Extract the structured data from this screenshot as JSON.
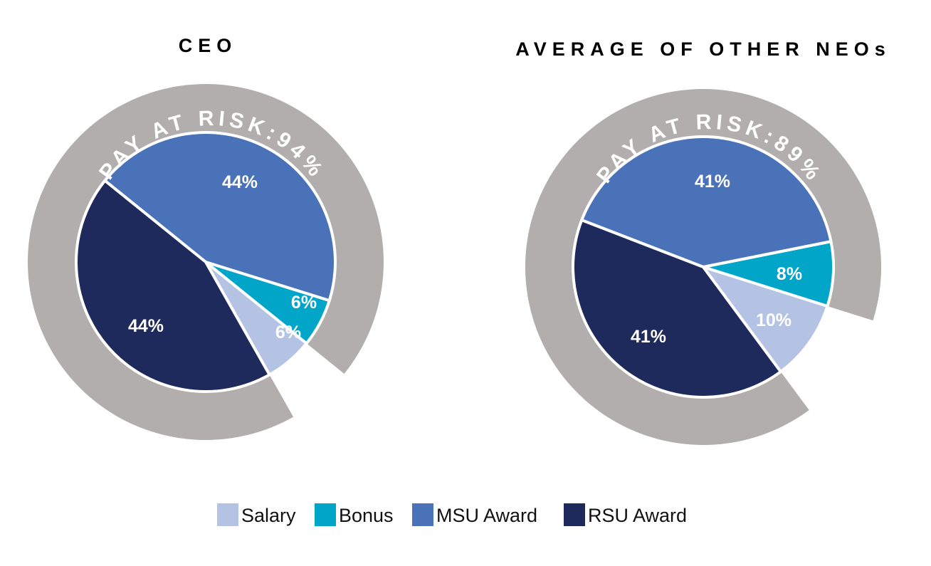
{
  "chart_data": [
    {
      "type": "pie",
      "title": "CEO",
      "pay_at_risk_label": "PAY AT RISK:94%",
      "categories": [
        "Salary",
        "Bonus",
        "MSU Award",
        "RSU Award"
      ],
      "values": [
        6,
        6,
        44,
        44
      ],
      "value_labels": [
        "6%",
        "6%",
        "44%",
        "44%"
      ]
    },
    {
      "type": "pie",
      "title": "AVERAGE OF OTHER NEOs",
      "pay_at_risk_label": "PAY AT RISK:89%",
      "categories": [
        "Salary",
        "Bonus",
        "MSU Award",
        "RSU Award"
      ],
      "values": [
        10,
        8,
        41,
        41
      ],
      "value_labels": [
        "10%",
        "8%",
        "41%",
        "41%"
      ]
    }
  ],
  "legend": [
    {
      "label": "Salary",
      "color": "#b4c3e3"
    },
    {
      "label": "Bonus",
      "color": "#00a5c8"
    },
    {
      "label": "MSU Award",
      "color": "#4a72b8"
    },
    {
      "label": "RSU Award",
      "color": "#1f2a5c"
    }
  ],
  "colors": {
    "ring": "#b2aeae",
    "Salary": "#b4c3e3",
    "Bonus": "#00a5c8",
    "MSU Award": "#4a72b8",
    "RSU Award": "#1f2a5c"
  }
}
